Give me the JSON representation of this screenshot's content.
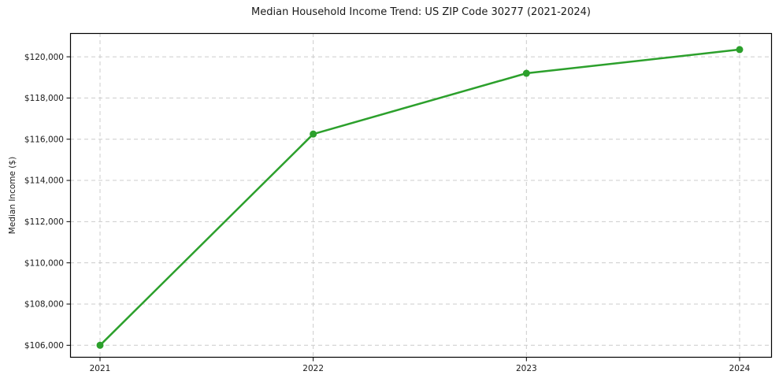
{
  "chart_data": {
    "type": "line",
    "title": "Median Household Income Trend: US ZIP Code 30277 (2021-2024)",
    "categories": [
      "2021",
      "2022",
      "2023",
      "2024"
    ],
    "series": [
      {
        "name": "Median Household Income",
        "values": [
          106000,
          116250,
          119200,
          120350
        ]
      }
    ],
    "xlabel": "",
    "ylabel": "Median Income ($)",
    "ylim": [
      105400,
      121150
    ],
    "yticks": [
      106000,
      108000,
      110000,
      112000,
      114000,
      116000,
      118000,
      120000
    ],
    "ytick_prefix": "$",
    "legend": "none",
    "grid": true,
    "grid_style": "dashed",
    "marker": "circle",
    "colors": {
      "line": "#2ca02c",
      "marker": "#2ca02c",
      "grid": "#cccccc",
      "axis": "#000000",
      "text": "#1a1a1a"
    }
  }
}
